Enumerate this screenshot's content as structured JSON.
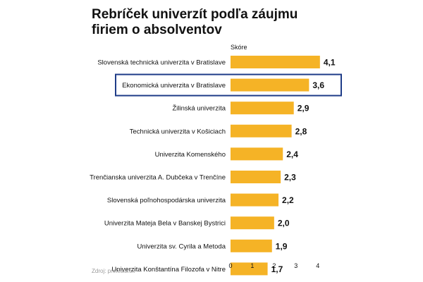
{
  "chart_data": {
    "type": "bar",
    "orientation": "horizontal",
    "title": "Rebríček univerzít podľa záujmu firiem o absolventov",
    "value_axis_label": "Skóre",
    "categories": [
      "Slovenská technická univerzita v Bratislave",
      "Ekonomická univerzita v Bratislave",
      "Žilinská univerzita",
      "Technická univerzita v Košiciach",
      "Univerzita Komenského",
      "Trenčianska univerzita A. Dubčeka v Trenčíne",
      "Slovenská poľnohospodárska univerzita",
      "Univerzita Mateja Bela v Banskej Bystrici",
      "Univerzita sv. Cyrila a Metoda",
      "Univerzita Konštantína Filozofa v Nitre"
    ],
    "values": [
      4.1,
      3.6,
      2.9,
      2.8,
      2.4,
      2.3,
      2.2,
      2.0,
      1.9,
      1.7
    ],
    "value_labels": [
      "4,1",
      "3,6",
      "2,9",
      "2,8",
      "2,4",
      "2,3",
      "2,2",
      "2,0",
      "1,9",
      "1,7"
    ],
    "xlim": [
      0,
      4.3
    ],
    "xticks": [
      0,
      1,
      2,
      3,
      4
    ],
    "xtick_labels": [
      "0",
      "1",
      "2",
      "3",
      "4"
    ],
    "highlighted_category": "Ekonomická univerzita v Bratislave",
    "source": "Zdroj: profesia.sk",
    "colors": {
      "bar": "#F5B326",
      "highlight_border": "#1F3C88",
      "text": "#111111",
      "muted": "#9a9a9a"
    }
  }
}
